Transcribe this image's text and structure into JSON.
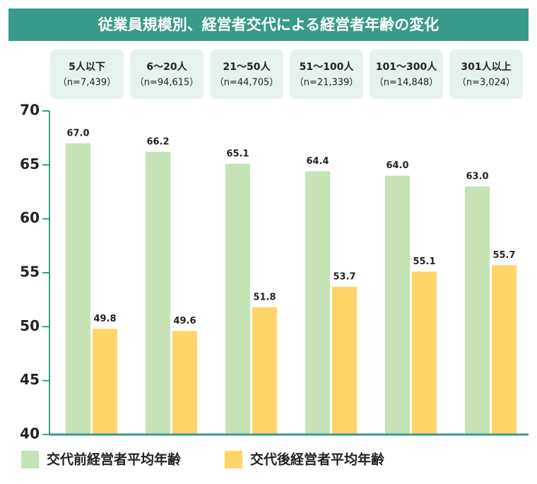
{
  "chart_data": {
    "type": "bar",
    "title": "従業員規模別、経営者交代による経営者年齢の変化",
    "categories": [
      "5人以下",
      "6〜20人",
      "21〜50人",
      "51〜100人",
      "101〜300人",
      "301人以上"
    ],
    "sample_sizes": [
      "（n=7,439）",
      "（n=94,615）",
      "（n=44,705）",
      "（n=21,339）",
      "（n=14,848）",
      "（n=3,024）"
    ],
    "series": [
      {
        "name": "交代前経営者平均年齢",
        "color": "#c5e3b5",
        "values": [
          67.0,
          66.2,
          65.1,
          64.4,
          64.0,
          63.0
        ],
        "value_labels": [
          "67.0",
          "66.2",
          "65.1",
          "64.4",
          "64.0",
          "63.0"
        ]
      },
      {
        "name": "交代後経営者平均年齢",
        "color": "#ffd567",
        "values": [
          49.8,
          49.6,
          51.8,
          53.7,
          55.1,
          55.7
        ],
        "value_labels": [
          "49.8",
          "49.6",
          "51.8",
          "53.7",
          "55.1",
          "55.7"
        ]
      }
    ],
    "ylim": [
      40,
      70
    ],
    "yticks": [
      40,
      45,
      50,
      55,
      60,
      65,
      70
    ],
    "axis_color": "#3a9a8a",
    "legend": "bottom"
  }
}
